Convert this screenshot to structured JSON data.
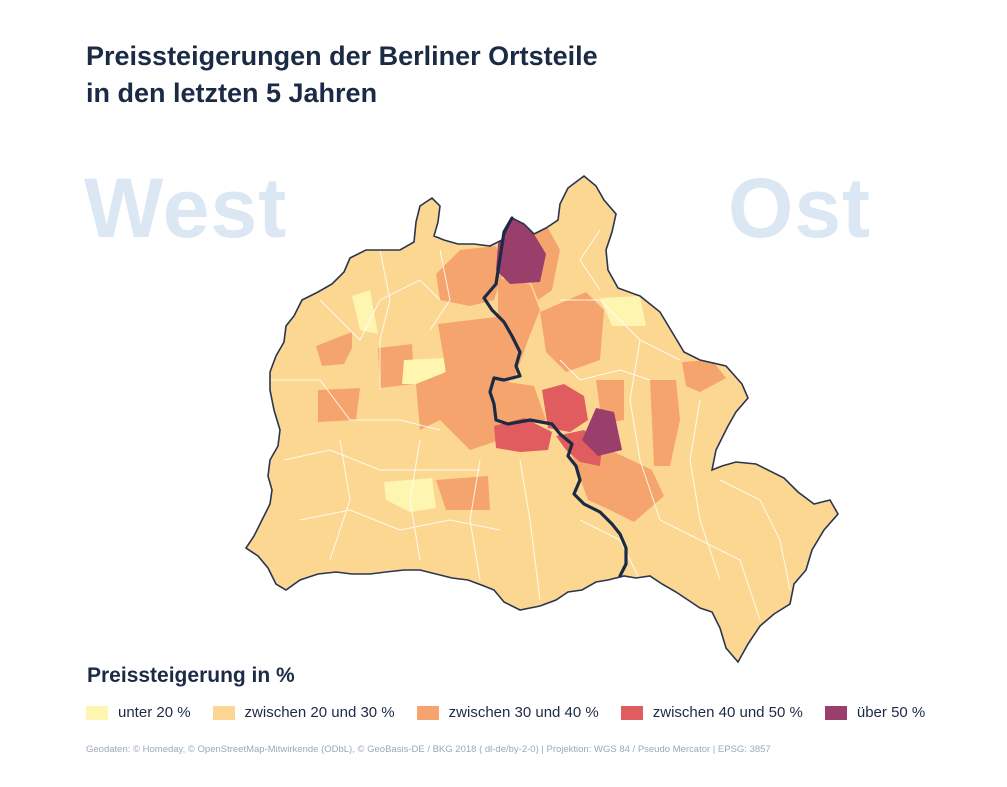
{
  "title": {
    "line1": "Preissteigerungen der Berliner Ortsteile",
    "line2": "in den letzten 5 Jahren"
  },
  "watermarks": {
    "west": "West",
    "ost": "Ost"
  },
  "legend": {
    "title": "Preissteigerung in %",
    "items": [
      {
        "label": "unter 20 %",
        "color": "#fdf5b0"
      },
      {
        "label": "zwischen 20 und 30 %",
        "color": "#fcd792"
      },
      {
        "label": "zwischen 30 und 40 %",
        "color": "#f5a46e"
      },
      {
        "label": "zwischen 40 und 50 %",
        "color": "#e05c5e"
      },
      {
        "label": "über 50 %",
        "color": "#9a3e6b"
      }
    ]
  },
  "colors": {
    "boundary": "#1c2b45",
    "district_edge": "#ffffff",
    "outline": "#2a3550"
  },
  "footer": "Geodaten: © Homeday, © OpenStreetMap-Mitwirkende (ODbL), © GeoBasis-DE / BKG 2018 ( dl-de/by-2-0) | Projektion: WGS 84 / Pseudo Mercator | EPSG: 3857"
}
